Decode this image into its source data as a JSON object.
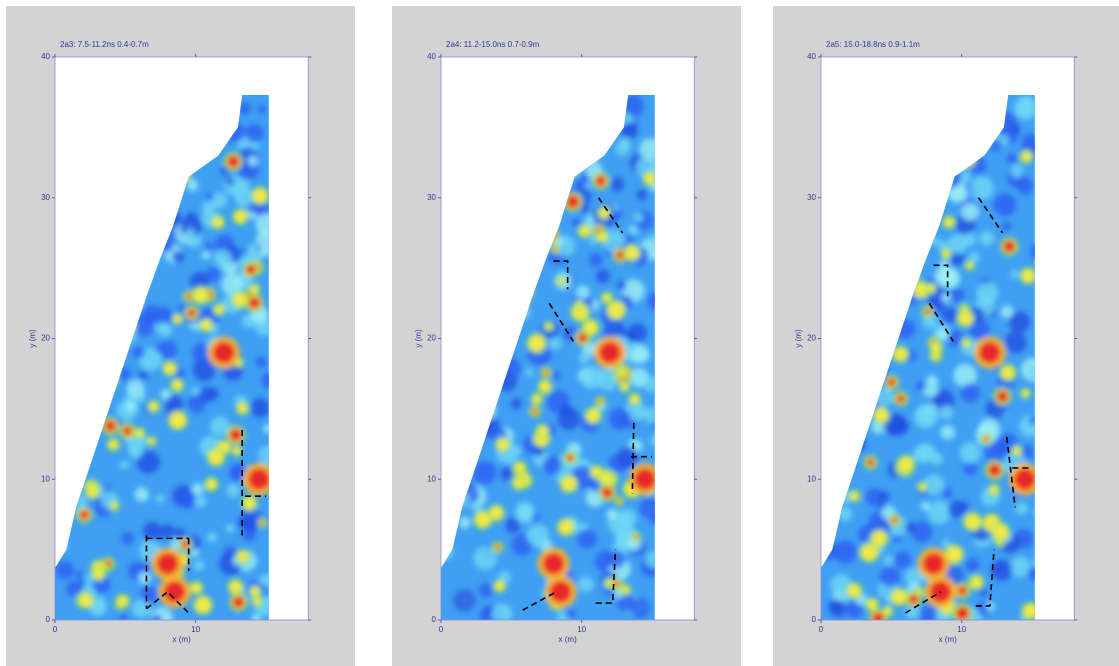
{
  "chart_data": [
    {
      "type": "heatmap",
      "title": "2a3:  7.5-11.2ns  0.4-0.7m",
      "x_label": "x (m)",
      "y_label": "y (m)",
      "xlim": [
        0,
        18
      ],
      "ylim": [
        0,
        40
      ],
      "xticks": [
        0,
        10
      ],
      "yticks": [
        0,
        10,
        20,
        30,
        40
      ]
    },
    {
      "type": "heatmap",
      "title": "2a4:  11.2-15.0ns  0.7-0.9m",
      "x_label": "x (m)",
      "y_label": "y (m)",
      "xlim": [
        0,
        18
      ],
      "ylim": [
        0,
        40
      ],
      "xticks": [
        0,
        10
      ],
      "yticks": [
        0,
        10,
        20,
        30,
        40
      ]
    },
    {
      "type": "heatmap",
      "title": "2a5:  15.0-18.8ns  0.9-1.1m",
      "x_label": "x (m)",
      "y_label": "y (m)",
      "xlim": [
        0,
        18
      ],
      "ylim": [
        0,
        40
      ],
      "xticks": [
        0,
        10
      ],
      "yticks": [
        0,
        10,
        20,
        30,
        40
      ]
    }
  ]
}
